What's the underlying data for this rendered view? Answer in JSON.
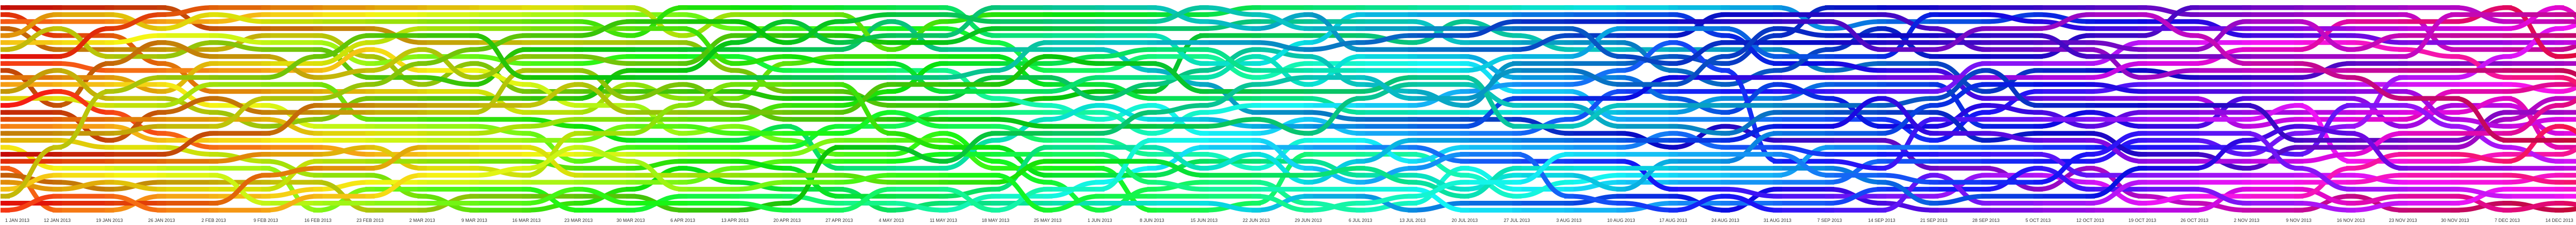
{
  "chart_data": {
    "type": "area",
    "title": "",
    "xlabel": "",
    "ylabel": "",
    "x": [
      "1 JAN 2013",
      "12 JAN 2013",
      "19 JAN 2013",
      "26 JAN 2013",
      "2 FEB 2013",
      "9 FEB 2013",
      "16 FEB 2013",
      "23 FEB 2013",
      "2 MAR 2013",
      "9 MAR 2013",
      "16 MAR 2013",
      "23 MAR 2013",
      "30 MAR 2013",
      "6 APR 2013",
      "13 APR 2013",
      "20 APR 2013",
      "27 APR 2013",
      "4 MAY 2013",
      "11 MAY 2013",
      "18 MAY 2013",
      "25 MAY 2013",
      "1 JUN 2013",
      "8 JUN 2013",
      "15 JUN 2013",
      "22 JUN 2013",
      "29 JUN 2013",
      "6 JUL 2013",
      "13 JUL 2013",
      "20 JUL 2013",
      "27 JUL 2013",
      "3 AUG 2013",
      "10 AUG 2013",
      "17 AUG 2013",
      "24 AUG 2013",
      "31 AUG 2013",
      "7 SEP 2013",
      "14 SEP 2013",
      "21 SEP 2013",
      "28 SEP 2013",
      "5 OCT 2013",
      "12 OCT 2013",
      "19 OCT 2013",
      "26 OCT 2013",
      "2 NOV 2013",
      "9 NOV 2013",
      "16 NOV 2013",
      "23 NOV 2013",
      "30 NOV 2013",
      "7 DEC 2013",
      "14 DEC 2013",
      "21 DEC 2013",
      "31 DEC 2013"
    ],
    "grid": false,
    "legend": "none",
    "series_count": 30
  },
  "colors": {
    "background": "#ffffff",
    "tick_text": "#333333",
    "label_text": "#ffffff"
  }
}
